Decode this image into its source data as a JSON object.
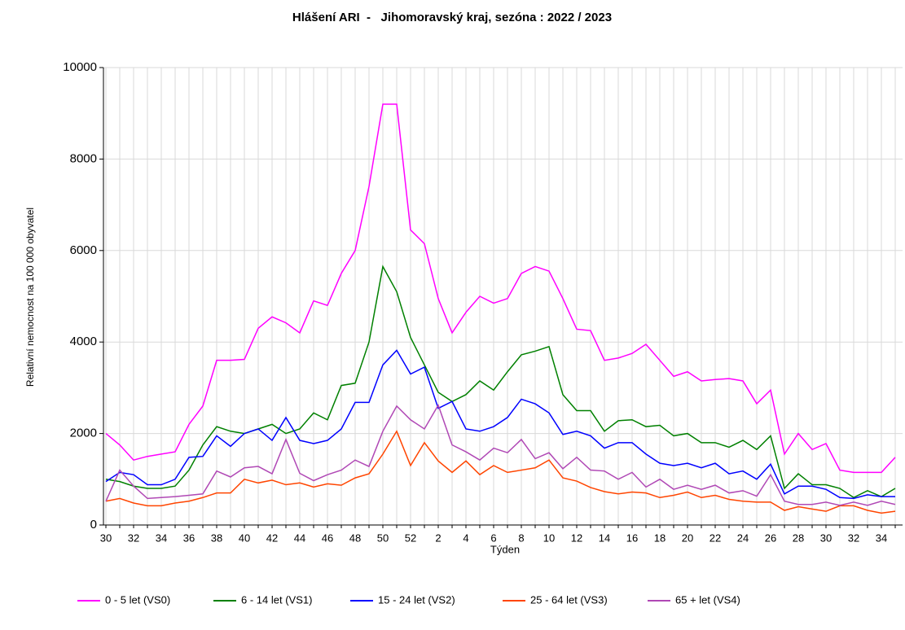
{
  "chart_data": {
    "type": "line",
    "title": "Hlášení ARI  -   Jihomoravský kraj, sezóna : 2022 / 2023",
    "x_label": "Týden",
    "y_label": "Relativní nemocnost na 100 000 obyvatel",
    "categories": [
      30,
      null,
      32,
      null,
      34,
      null,
      36,
      null,
      38,
      null,
      40,
      null,
      42,
      null,
      44,
      null,
      46,
      null,
      48,
      null,
      50,
      null,
      52,
      null,
      2,
      null,
      4,
      null,
      6,
      null,
      8,
      null,
      10,
      null,
      12,
      null,
      14,
      null,
      16,
      null,
      18,
      null,
      20,
      null,
      22,
      null,
      24,
      null,
      26,
      null,
      28,
      null,
      30,
      null,
      32,
      null,
      34,
      null
    ],
    "ylim": [
      0,
      10000
    ],
    "yticks": [
      0,
      2000,
      4000,
      6000,
      8000,
      10000
    ],
    "grid": true,
    "legend": "bottom",
    "series": [
      {
        "name": "0 - 5 let (VS0)",
        "color": "#ff00ff",
        "values": [
          2000,
          1750,
          1420,
          1500,
          1550,
          1600,
          2200,
          2600,
          3600,
          3600,
          3620,
          4300,
          4550,
          4420,
          4200,
          4900,
          4800,
          5500,
          6000,
          7400,
          9200,
          9200,
          6450,
          6150,
          4950,
          4200,
          4650,
          5000,
          4850,
          4950,
          5500,
          5650,
          5550,
          4950,
          4280,
          4250,
          3600,
          3650,
          3750,
          3950,
          3600,
          3250,
          3350,
          3150,
          3180,
          3200,
          3150,
          2650,
          2950,
          1550,
          2000,
          1650,
          1780,
          1200,
          1150,
          1150,
          1150,
          1480
        ]
      },
      {
        "name": "6 - 14 let (VS1)",
        "color": "#008000",
        "values": [
          1000,
          950,
          850,
          800,
          800,
          850,
          1200,
          1750,
          2150,
          2050,
          2000,
          2100,
          2200,
          2000,
          2100,
          2450,
          2300,
          3050,
          3100,
          4000,
          5650,
          5100,
          4100,
          3500,
          2900,
          2700,
          2850,
          3150,
          2950,
          3350,
          3720,
          3800,
          3900,
          2850,
          2500,
          2500,
          2050,
          2280,
          2300,
          2150,
          2180,
          1950,
          2000,
          1800,
          1800,
          1700,
          1850,
          1650,
          1950,
          800,
          1120,
          880,
          880,
          800,
          600,
          750,
          620,
          800
        ]
      },
      {
        "name": "15 - 24 let (VS2)",
        "color": "#0000ff",
        "values": [
          950,
          1150,
          1100,
          880,
          880,
          1000,
          1480,
          1500,
          1950,
          1720,
          2000,
          2100,
          1850,
          2350,
          1850,
          1780,
          1850,
          2100,
          2680,
          2680,
          3500,
          3820,
          3300,
          3450,
          2550,
          2700,
          2100,
          2050,
          2150,
          2350,
          2750,
          2650,
          2450,
          1980,
          2050,
          1950,
          1680,
          1800,
          1800,
          1550,
          1350,
          1300,
          1350,
          1250,
          1350,
          1120,
          1180,
          1000,
          1330,
          680,
          850,
          850,
          780,
          600,
          580,
          660,
          620,
          620
        ]
      },
      {
        "name": "25 - 64 let (VS3)",
        "color": "#ff4500",
        "values": [
          520,
          580,
          480,
          420,
          420,
          480,
          520,
          600,
          700,
          700,
          1000,
          920,
          980,
          880,
          920,
          830,
          900,
          870,
          1030,
          1120,
          1550,
          2050,
          1300,
          1800,
          1400,
          1150,
          1400,
          1100,
          1300,
          1150,
          1200,
          1250,
          1420,
          1030,
          960,
          820,
          730,
          680,
          720,
          700,
          600,
          650,
          720,
          600,
          650,
          560,
          520,
          500,
          500,
          320,
          400,
          350,
          300,
          420,
          420,
          320,
          260,
          300
        ]
      },
      {
        "name": "65 + let (VS4)",
        "color": "#b048b5",
        "values": [
          520,
          1200,
          850,
          580,
          600,
          620,
          650,
          680,
          1180,
          1050,
          1250,
          1280,
          1120,
          1870,
          1130,
          970,
          1100,
          1200,
          1420,
          1280,
          2050,
          2600,
          2300,
          2100,
          2620,
          1750,
          1600,
          1420,
          1680,
          1580,
          1870,
          1450,
          1580,
          1230,
          1480,
          1200,
          1180,
          1000,
          1150,
          830,
          1000,
          780,
          870,
          780,
          870,
          700,
          750,
          630,
          1100,
          520,
          450,
          450,
          500,
          430,
          500,
          430,
          520,
          450
        ]
      }
    ]
  }
}
